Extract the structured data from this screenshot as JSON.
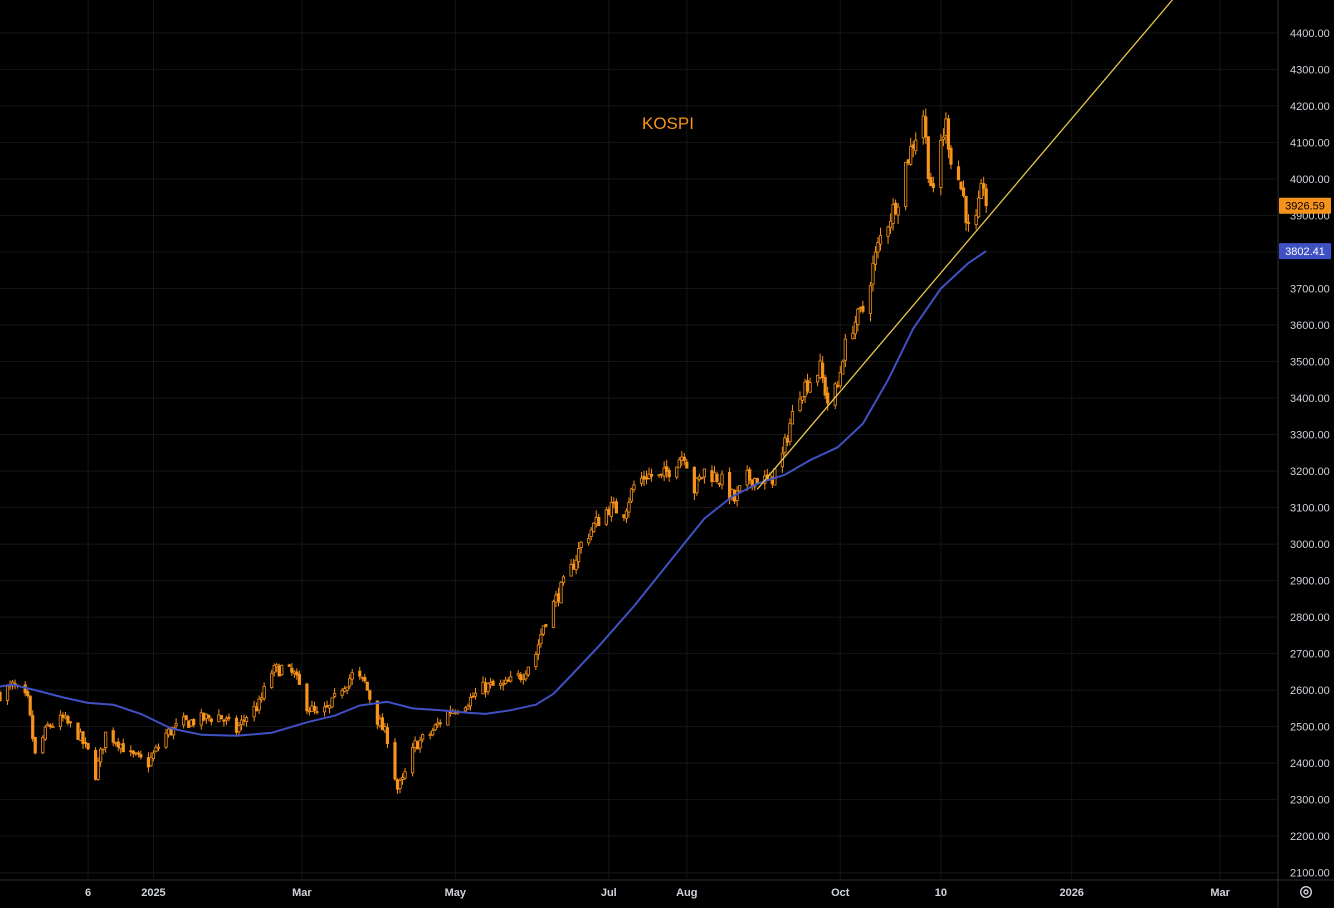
{
  "chart_data": {
    "type": "candlestick",
    "title": "KOSPI",
    "ylim": [
      2080,
      4490
    ],
    "y_ticks": [
      2100,
      2200,
      2300,
      2400,
      2500,
      2600,
      2700,
      2800,
      2900,
      3000,
      3100,
      3200,
      3300,
      3400,
      3500,
      3600,
      3700,
      3800,
      3900,
      4000,
      4100,
      4200,
      4300,
      4400
    ],
    "x_range": [
      "2024-11-01",
      "2026-03-24"
    ],
    "x_ticks": [
      {
        "date": "2024-12-06",
        "label": "6"
      },
      {
        "date": "2025-01-01",
        "label": "2025"
      },
      {
        "date": "2025-03-01",
        "label": "Mar"
      },
      {
        "date": "2025-05-01",
        "label": "May"
      },
      {
        "date": "2025-07-01",
        "label": "Jul"
      },
      {
        "date": "2025-08-01",
        "label": "Aug"
      },
      {
        "date": "2025-10-01",
        "label": "Oct"
      },
      {
        "date": "2025-11-10",
        "label": "10"
      },
      {
        "date": "2026-01-01",
        "label": "2026"
      },
      {
        "date": "2026-03-01",
        "label": "Mar"
      }
    ],
    "price_path": [
      [
        "2024-11-01",
        2590
      ],
      [
        "2024-11-06",
        2610
      ],
      [
        "2024-11-12",
        2570
      ],
      [
        "2024-11-15",
        2420
      ],
      [
        "2024-11-20",
        2500
      ],
      [
        "2024-11-26",
        2520
      ],
      [
        "2024-12-02",
        2480
      ],
      [
        "2024-12-06",
        2430
      ],
      [
        "2024-12-09",
        2370
      ],
      [
        "2024-12-13",
        2480
      ],
      [
        "2024-12-18",
        2460
      ],
      [
        "2024-12-23",
        2420
      ],
      [
        "2024-12-30",
        2400
      ],
      [
        "2025-01-06",
        2480
      ],
      [
        "2025-01-13",
        2510
      ],
      [
        "2025-01-20",
        2520
      ],
      [
        "2025-01-27",
        2530
      ],
      [
        "2025-02-03",
        2490
      ],
      [
        "2025-02-07",
        2530
      ],
      [
        "2025-02-12",
        2560
      ],
      [
        "2025-02-17",
        2650
      ],
      [
        "2025-02-21",
        2660
      ],
      [
        "2025-02-26",
        2640
      ],
      [
        "2025-03-03",
        2560
      ],
      [
        "2025-03-07",
        2530
      ],
      [
        "2025-03-12",
        2550
      ],
      [
        "2025-03-17",
        2610
      ],
      [
        "2025-03-21",
        2640
      ],
      [
        "2025-03-26",
        2620
      ],
      [
        "2025-03-31",
        2520
      ],
      [
        "2025-04-04",
        2470
      ],
      [
        "2025-04-08",
        2330
      ],
      [
        "2025-04-10",
        2350
      ],
      [
        "2025-04-15",
        2450
      ],
      [
        "2025-04-21",
        2480
      ],
      [
        "2025-04-28",
        2540
      ],
      [
        "2025-05-06",
        2570
      ],
      [
        "2025-05-13",
        2610
      ],
      [
        "2025-05-20",
        2610
      ],
      [
        "2025-05-27",
        2640
      ],
      [
        "2025-06-02",
        2700
      ],
      [
        "2025-06-05",
        2780
      ],
      [
        "2025-06-10",
        2850
      ],
      [
        "2025-06-16",
        2930
      ],
      [
        "2025-06-20",
        3000
      ],
      [
        "2025-06-25",
        3050
      ],
      [
        "2025-07-01",
        3100
      ],
      [
        "2025-07-07",
        3090
      ],
      [
        "2025-07-11",
        3160
      ],
      [
        "2025-07-16",
        3190
      ],
      [
        "2025-07-22",
        3180
      ],
      [
        "2025-07-28",
        3230
      ],
      [
        "2025-07-31",
        3250
      ],
      [
        "2025-08-04",
        3150
      ],
      [
        "2025-08-08",
        3200
      ],
      [
        "2025-08-14",
        3180
      ],
      [
        "2025-08-20",
        3120
      ],
      [
        "2025-08-25",
        3180
      ],
      [
        "2025-08-29",
        3180
      ],
      [
        "2025-09-03",
        3170
      ],
      [
        "2025-09-08",
        3240
      ],
      [
        "2025-09-11",
        3330
      ],
      [
        "2025-09-15",
        3420
      ],
      [
        "2025-09-19",
        3450
      ],
      [
        "2025-09-23",
        3480
      ],
      [
        "2025-09-26",
        3390
      ],
      [
        "2025-09-30",
        3430
      ],
      [
        "2025-10-02",
        3520
      ],
      [
        "2025-10-06",
        3600
      ],
      [
        "2025-10-10",
        3640
      ],
      [
        "2025-10-14",
        3760
      ],
      [
        "2025-10-17",
        3840
      ],
      [
        "2025-10-21",
        3900
      ],
      [
        "2025-10-24",
        3950
      ],
      [
        "2025-10-27",
        4040
      ],
      [
        "2025-10-30",
        4100
      ],
      [
        "2025-11-03",
        4180
      ],
      [
        "2025-11-05",
        4030
      ],
      [
        "2025-11-07",
        3950
      ],
      [
        "2025-11-10",
        4100
      ],
      [
        "2025-11-12",
        4150
      ],
      [
        "2025-11-14",
        4060
      ],
      [
        "2025-11-17",
        4000
      ],
      [
        "2025-11-19",
        3950
      ],
      [
        "2025-11-21",
        3860
      ],
      [
        "2025-11-24",
        3880
      ],
      [
        "2025-11-26",
        3960
      ],
      [
        "2025-11-27",
        3990
      ],
      [
        "2025-11-28",
        3926.59
      ]
    ],
    "moving_average": {
      "color": "#3f51c4",
      "last_value": 3802.41,
      "points": [
        [
          "2024-11-01",
          2610
        ],
        [
          "2024-11-06",
          2615
        ],
        [
          "2024-11-15",
          2600
        ],
        [
          "2024-11-26",
          2580
        ],
        [
          "2024-12-06",
          2565
        ],
        [
          "2024-12-16",
          2560
        ],
        [
          "2024-12-27",
          2535
        ],
        [
          "2025-01-08",
          2495
        ],
        [
          "2025-01-20",
          2478
        ],
        [
          "2025-02-03",
          2475
        ],
        [
          "2025-02-17",
          2483
        ],
        [
          "2025-03-03",
          2512
        ],
        [
          "2025-03-14",
          2530
        ],
        [
          "2025-03-24",
          2558
        ],
        [
          "2025-04-04",
          2568
        ],
        [
          "2025-04-14",
          2550
        ],
        [
          "2025-04-25",
          2545
        ],
        [
          "2025-05-06",
          2538
        ],
        [
          "2025-05-13",
          2535
        ],
        [
          "2025-05-23",
          2545
        ],
        [
          "2025-06-02",
          2560
        ],
        [
          "2025-06-09",
          2590
        ],
        [
          "2025-06-16",
          2640
        ],
        [
          "2025-06-27",
          2720
        ],
        [
          "2025-07-11",
          2830
        ],
        [
          "2025-07-25",
          2950
        ],
        [
          "2025-08-08",
          3070
        ],
        [
          "2025-08-19",
          3130
        ],
        [
          "2025-08-29",
          3165
        ],
        [
          "2025-09-09",
          3190
        ],
        [
          "2025-09-19",
          3230
        ],
        [
          "2025-09-30",
          3265
        ],
        [
          "2025-10-10",
          3330
        ],
        [
          "2025-10-20",
          3450
        ],
        [
          "2025-10-30",
          3590
        ],
        [
          "2025-11-10",
          3700
        ],
        [
          "2025-11-21",
          3770
        ],
        [
          "2025-11-28",
          3802.41
        ]
      ]
    },
    "trendline": {
      "color": "#e8c84a",
      "points": [
        [
          "2025-08-29",
          3150
        ],
        [
          "2026-02-10",
          4490
        ]
      ]
    },
    "last_price": 3926.59,
    "last_price_color": "#f7931a",
    "candle_color": "#f7931a",
    "grid": true
  }
}
